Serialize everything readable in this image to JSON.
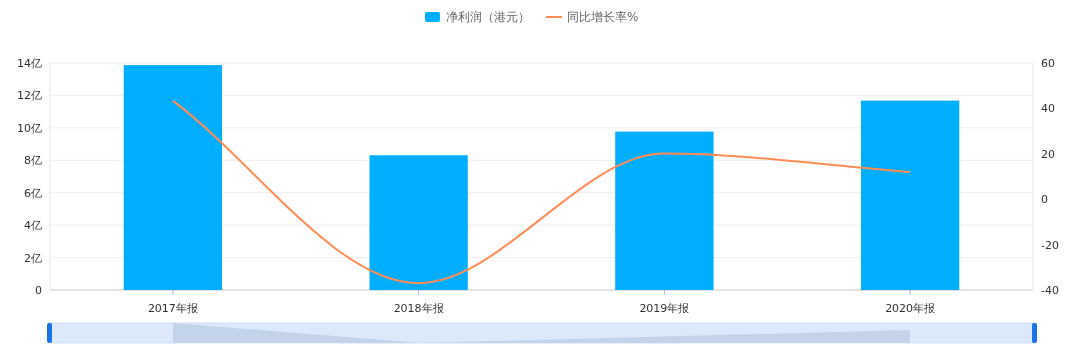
{
  "chart_data": {
    "type": "bar",
    "categories": [
      "2017年报",
      "2018年报",
      "2019年报",
      "2020年报"
    ],
    "series": [
      {
        "name": "净利润（港元）",
        "color": "#00aeff",
        "values": [
          13.87,
          8.31,
          9.77,
          11.68
        ]
      },
      {
        "name": "同比增长率%",
        "type": "line",
        "axis": "y2",
        "color": "#ff8c55",
        "values": [
          43.3,
          -37.0,
          20.1,
          12.0
        ]
      }
    ],
    "ylim": [
      0,
      14
    ],
    "yticks": [
      0,
      {
        "value": 2,
        "label": "2亿"
      },
      {
        "value": 4,
        "label": "4亿"
      },
      {
        "value": 6,
        "label": "6亿"
      },
      {
        "value": 8,
        "label": "8亿"
      },
      {
        "value": 10,
        "label": "10亿"
      },
      {
        "value": 12,
        "label": "12亿"
      },
      {
        "value": 14,
        "label": "14亿"
      }
    ],
    "y2lim": [
      -40,
      60
    ],
    "y2ticks": [
      -40,
      -20,
      0,
      20,
      40,
      60
    ],
    "grid": "y",
    "legend": "top",
    "marker": "none"
  }
}
